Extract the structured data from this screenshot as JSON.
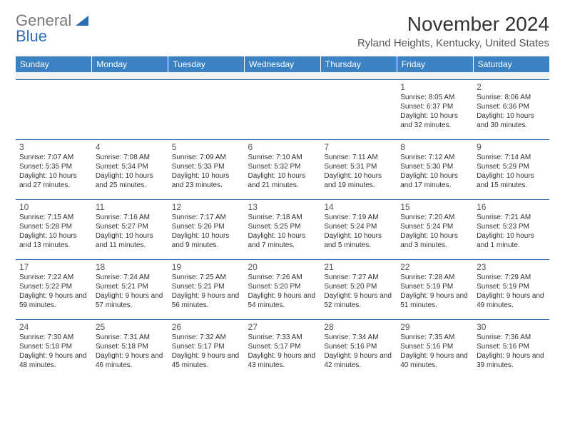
{
  "logo": {
    "line1": "General",
    "line2": "Blue"
  },
  "title": "November 2024",
  "subtitle": "Ryland Heights, Kentucky, United States",
  "colors": {
    "header_bg": "#3b82c4",
    "header_text": "#ffffff",
    "border": "#2a6db5",
    "spacer_bg": "#eef0f2",
    "text": "#333333",
    "logo_gray": "#7a7a7a",
    "logo_blue": "#2a6db5"
  },
  "weekdays": [
    "Sunday",
    "Monday",
    "Tuesday",
    "Wednesday",
    "Thursday",
    "Friday",
    "Saturday"
  ],
  "weeks": [
    [
      null,
      null,
      null,
      null,
      null,
      {
        "n": "1",
        "sr": "8:05 AM",
        "ss": "6:37 PM",
        "dl": "10 hours and 32 minutes."
      },
      {
        "n": "2",
        "sr": "8:06 AM",
        "ss": "6:36 PM",
        "dl": "10 hours and 30 minutes."
      }
    ],
    [
      {
        "n": "3",
        "sr": "7:07 AM",
        "ss": "5:35 PM",
        "dl": "10 hours and 27 minutes."
      },
      {
        "n": "4",
        "sr": "7:08 AM",
        "ss": "5:34 PM",
        "dl": "10 hours and 25 minutes."
      },
      {
        "n": "5",
        "sr": "7:09 AM",
        "ss": "5:33 PM",
        "dl": "10 hours and 23 minutes."
      },
      {
        "n": "6",
        "sr": "7:10 AM",
        "ss": "5:32 PM",
        "dl": "10 hours and 21 minutes."
      },
      {
        "n": "7",
        "sr": "7:11 AM",
        "ss": "5:31 PM",
        "dl": "10 hours and 19 minutes."
      },
      {
        "n": "8",
        "sr": "7:12 AM",
        "ss": "5:30 PM",
        "dl": "10 hours and 17 minutes."
      },
      {
        "n": "9",
        "sr": "7:14 AM",
        "ss": "5:29 PM",
        "dl": "10 hours and 15 minutes."
      }
    ],
    [
      {
        "n": "10",
        "sr": "7:15 AM",
        "ss": "5:28 PM",
        "dl": "10 hours and 13 minutes."
      },
      {
        "n": "11",
        "sr": "7:16 AM",
        "ss": "5:27 PM",
        "dl": "10 hours and 11 minutes."
      },
      {
        "n": "12",
        "sr": "7:17 AM",
        "ss": "5:26 PM",
        "dl": "10 hours and 9 minutes."
      },
      {
        "n": "13",
        "sr": "7:18 AM",
        "ss": "5:25 PM",
        "dl": "10 hours and 7 minutes."
      },
      {
        "n": "14",
        "sr": "7:19 AM",
        "ss": "5:24 PM",
        "dl": "10 hours and 5 minutes."
      },
      {
        "n": "15",
        "sr": "7:20 AM",
        "ss": "5:24 PM",
        "dl": "10 hours and 3 minutes."
      },
      {
        "n": "16",
        "sr": "7:21 AM",
        "ss": "5:23 PM",
        "dl": "10 hours and 1 minute."
      }
    ],
    [
      {
        "n": "17",
        "sr": "7:22 AM",
        "ss": "5:22 PM",
        "dl": "9 hours and 59 minutes."
      },
      {
        "n": "18",
        "sr": "7:24 AM",
        "ss": "5:21 PM",
        "dl": "9 hours and 57 minutes."
      },
      {
        "n": "19",
        "sr": "7:25 AM",
        "ss": "5:21 PM",
        "dl": "9 hours and 56 minutes."
      },
      {
        "n": "20",
        "sr": "7:26 AM",
        "ss": "5:20 PM",
        "dl": "9 hours and 54 minutes."
      },
      {
        "n": "21",
        "sr": "7:27 AM",
        "ss": "5:20 PM",
        "dl": "9 hours and 52 minutes."
      },
      {
        "n": "22",
        "sr": "7:28 AM",
        "ss": "5:19 PM",
        "dl": "9 hours and 51 minutes."
      },
      {
        "n": "23",
        "sr": "7:29 AM",
        "ss": "5:19 PM",
        "dl": "9 hours and 49 minutes."
      }
    ],
    [
      {
        "n": "24",
        "sr": "7:30 AM",
        "ss": "5:18 PM",
        "dl": "9 hours and 48 minutes."
      },
      {
        "n": "25",
        "sr": "7:31 AM",
        "ss": "5:18 PM",
        "dl": "9 hours and 46 minutes."
      },
      {
        "n": "26",
        "sr": "7:32 AM",
        "ss": "5:17 PM",
        "dl": "9 hours and 45 minutes."
      },
      {
        "n": "27",
        "sr": "7:33 AM",
        "ss": "5:17 PM",
        "dl": "9 hours and 43 minutes."
      },
      {
        "n": "28",
        "sr": "7:34 AM",
        "ss": "5:16 PM",
        "dl": "9 hours and 42 minutes."
      },
      {
        "n": "29",
        "sr": "7:35 AM",
        "ss": "5:16 PM",
        "dl": "9 hours and 40 minutes."
      },
      {
        "n": "30",
        "sr": "7:36 AM",
        "ss": "5:16 PM",
        "dl": "9 hours and 39 minutes."
      }
    ]
  ],
  "labels": {
    "sunrise": "Sunrise:",
    "sunset": "Sunset:",
    "daylight": "Daylight:"
  }
}
